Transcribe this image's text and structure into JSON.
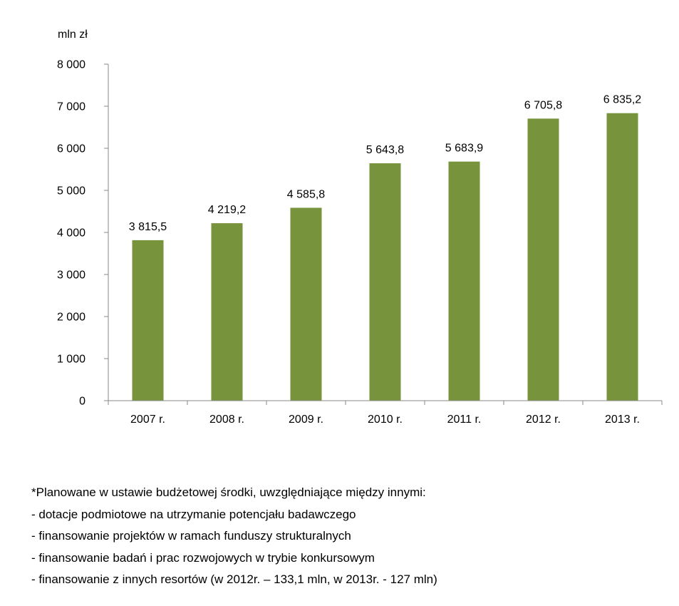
{
  "chart_data": {
    "type": "bar",
    "categories": [
      "2007 r.",
      "2008 r.",
      "2009 r.",
      "2010 r.",
      "2011 r.",
      "2012 r.",
      "2013 r."
    ],
    "values": [
      3815.5,
      4219.2,
      4585.8,
      5643.8,
      5683.9,
      6705.8,
      6835.2
    ],
    "value_labels": [
      "3 815,5",
      "4 219,2",
      "4 585,8",
      "5 643,8",
      "5 683,9",
      "6 705,8",
      "6 835,2"
    ],
    "ylabel": "mln zł",
    "ylim": [
      0,
      8000
    ],
    "yticks": [
      0,
      1000,
      2000,
      3000,
      4000,
      5000,
      6000,
      7000,
      8000
    ],
    "ytick_labels": [
      "0",
      "1 000",
      "2 000",
      "3 000",
      "4 000",
      "5 000",
      "6 000",
      "7 000",
      "8 000"
    ],
    "grid": false,
    "legend": false,
    "bar_color": "#77933c",
    "axis_color": "#888888"
  },
  "notes": {
    "lines": [
      "*Planowane w ustawie budżetowej środki, uwzględniające między innymi:",
      "- dotacje podmiotowe na utrzymanie potencjału badawczego",
      "- finansowanie projektów w ramach funduszy strukturalnych",
      "- finansowanie badań i prac rozwojowych w trybie konkursowym",
      "- finansowanie z innych resortów (w 2012r. – 133,1 mln, w 2013r. - 127 mln)"
    ]
  }
}
